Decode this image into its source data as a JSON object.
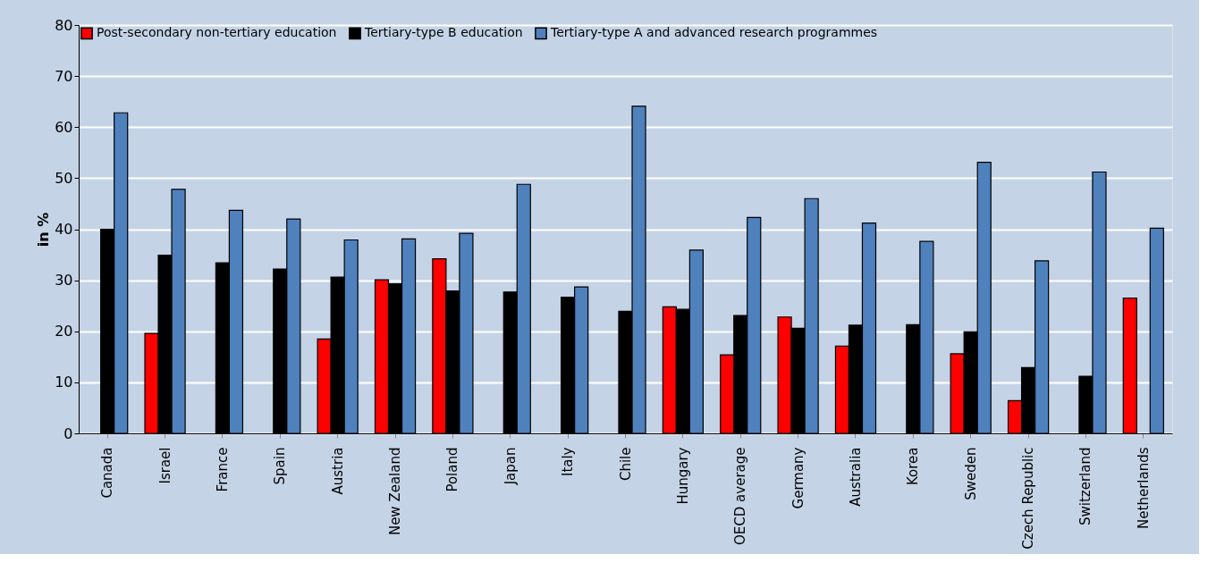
{
  "chart_data": {
    "type": "bar",
    "ylabel": "in %",
    "categories": [
      "Canada",
      "Israel",
      "France",
      "Spain",
      "Austria",
      "New Zealand",
      "Poland",
      "Japan",
      "Italy",
      "Chile",
      "Hungary",
      "OECD average",
      "Germany",
      "Australia",
      "Korea",
      "Sweden",
      "Czech Republic",
      "Switzerland",
      "Netherlands"
    ],
    "series": [
      {
        "name": "Post-secondary non-tertiary education",
        "color": "#ff0000",
        "values": [
          null,
          19.6,
          null,
          null,
          18.5,
          30.1,
          34.2,
          null,
          null,
          null,
          24.8,
          15.4,
          22.8,
          17.1,
          null,
          15.6,
          6.4,
          null,
          26.5
        ]
      },
      {
        "name": "Tertiary-type B education",
        "color": "#000000",
        "values": [
          40,
          34.9,
          33.4,
          32.2,
          30.6,
          29.3,
          27.9,
          27.7,
          26.7,
          23.9,
          24.3,
          23.1,
          20.6,
          21.2,
          21.3,
          19.9,
          12.9,
          11.2,
          null
        ]
      },
      {
        "name": "Tertiary-type A and advanced research programmes",
        "color": "#4f81bd",
        "values": [
          62.8,
          47.8,
          43.7,
          42,
          37.9,
          38.1,
          39.2,
          48.8,
          28.7,
          64.1,
          35.9,
          42.3,
          46,
          41.2,
          37.6,
          53.1,
          33.8,
          51.2,
          40.2
        ]
      }
    ],
    "ylim": [
      0,
      80
    ],
    "yticks": [
      0,
      10,
      20,
      30,
      40,
      50,
      60,
      70,
      80
    ],
    "grid": "y",
    "legend": "top left"
  }
}
